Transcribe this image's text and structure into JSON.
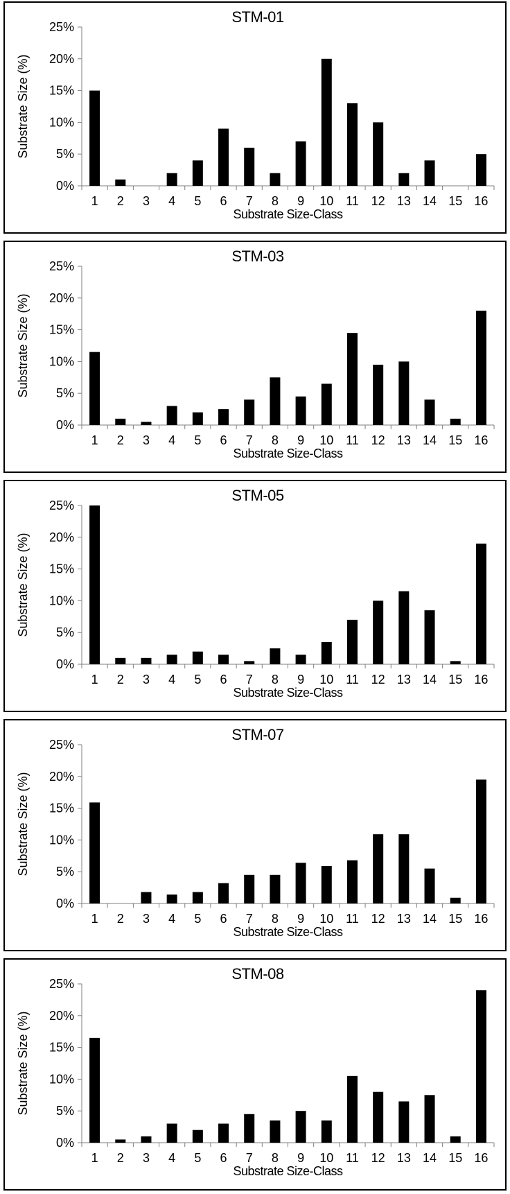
{
  "chart_data": [
    {
      "type": "bar",
      "title": "STM-01",
      "xlabel": "Substrate Size-Class",
      "ylabel": "Substrate Size (%)",
      "ylim": [
        0,
        25
      ],
      "yticks": [
        "0%",
        "5%",
        "10%",
        "15%",
        "20%",
        "25%"
      ],
      "categories": [
        "1",
        "2",
        "3",
        "4",
        "5",
        "6",
        "7",
        "8",
        "9",
        "10",
        "11",
        "12",
        "13",
        "14",
        "15",
        "16"
      ],
      "values": [
        15,
        1,
        0,
        2,
        4,
        9,
        6,
        2,
        7,
        20,
        13,
        10,
        2,
        4,
        0,
        5
      ],
      "bar_color": "#000000",
      "grid": false
    },
    {
      "type": "bar",
      "title": "STM-03",
      "xlabel": "Substrate Size-Class",
      "ylabel": "Substrate Size (%)",
      "ylim": [
        0,
        25
      ],
      "yticks": [
        "0%",
        "5%",
        "10%",
        "15%",
        "20%",
        "25%"
      ],
      "categories": [
        "1",
        "2",
        "3",
        "4",
        "5",
        "6",
        "7",
        "8",
        "9",
        "10",
        "11",
        "12",
        "13",
        "14",
        "15",
        "16"
      ],
      "values": [
        11.5,
        1,
        0.5,
        3,
        2,
        2.5,
        4,
        7.5,
        4.5,
        6.5,
        14.5,
        9.5,
        10,
        4,
        1,
        18
      ],
      "bar_color": "#000000",
      "grid": false
    },
    {
      "type": "bar",
      "title": "STM-05",
      "xlabel": "Substrate Size-Class",
      "ylabel": "Substrate Size (%)",
      "ylim": [
        0,
        25
      ],
      "yticks": [
        "0%",
        "5%",
        "10%",
        "15%",
        "20%",
        "25%"
      ],
      "categories": [
        "1",
        "2",
        "3",
        "4",
        "5",
        "6",
        "7",
        "8",
        "9",
        "10",
        "11",
        "12",
        "13",
        "14",
        "15",
        "16"
      ],
      "values": [
        25,
        1,
        1,
        1.5,
        2,
        1.5,
        0.5,
        2.5,
        1.5,
        3.5,
        7,
        10,
        11.5,
        8.5,
        0.5,
        19
      ],
      "bar_color": "#000000",
      "grid": false
    },
    {
      "type": "bar",
      "title": "STM-07",
      "xlabel": "Substrate Size-Class",
      "ylabel": "Substrate Size (%)",
      "ylim": [
        0,
        25
      ],
      "yticks": [
        "0%",
        "5%",
        "10%",
        "15%",
        "20%",
        "25%"
      ],
      "categories": [
        "1",
        "2",
        "3",
        "4",
        "5",
        "6",
        "7",
        "8",
        "9",
        "10",
        "11",
        "12",
        "13",
        "14",
        "15",
        "16"
      ],
      "values": [
        15.9,
        0,
        1.8,
        1.4,
        1.8,
        3.2,
        4.5,
        4.5,
        6.4,
        5.9,
        6.8,
        10.9,
        10.9,
        5.5,
        0.9,
        19.5
      ],
      "bar_color": "#000000",
      "grid": false
    },
    {
      "type": "bar",
      "title": "STM-08",
      "xlabel": "Substrate Size-Class",
      "ylabel": "Substrate Size (%)",
      "ylim": [
        0,
        25
      ],
      "yticks": [
        "0%",
        "5%",
        "10%",
        "15%",
        "20%",
        "25%"
      ],
      "categories": [
        "1",
        "2",
        "3",
        "4",
        "5",
        "6",
        "7",
        "8",
        "9",
        "10",
        "11",
        "12",
        "13",
        "14",
        "15",
        "16"
      ],
      "values": [
        16.5,
        0.5,
        1,
        3,
        2,
        3,
        4.5,
        3.5,
        5,
        3.5,
        10.5,
        8,
        6.5,
        7.5,
        1,
        24
      ],
      "bar_color": "#000000",
      "grid": false
    }
  ]
}
